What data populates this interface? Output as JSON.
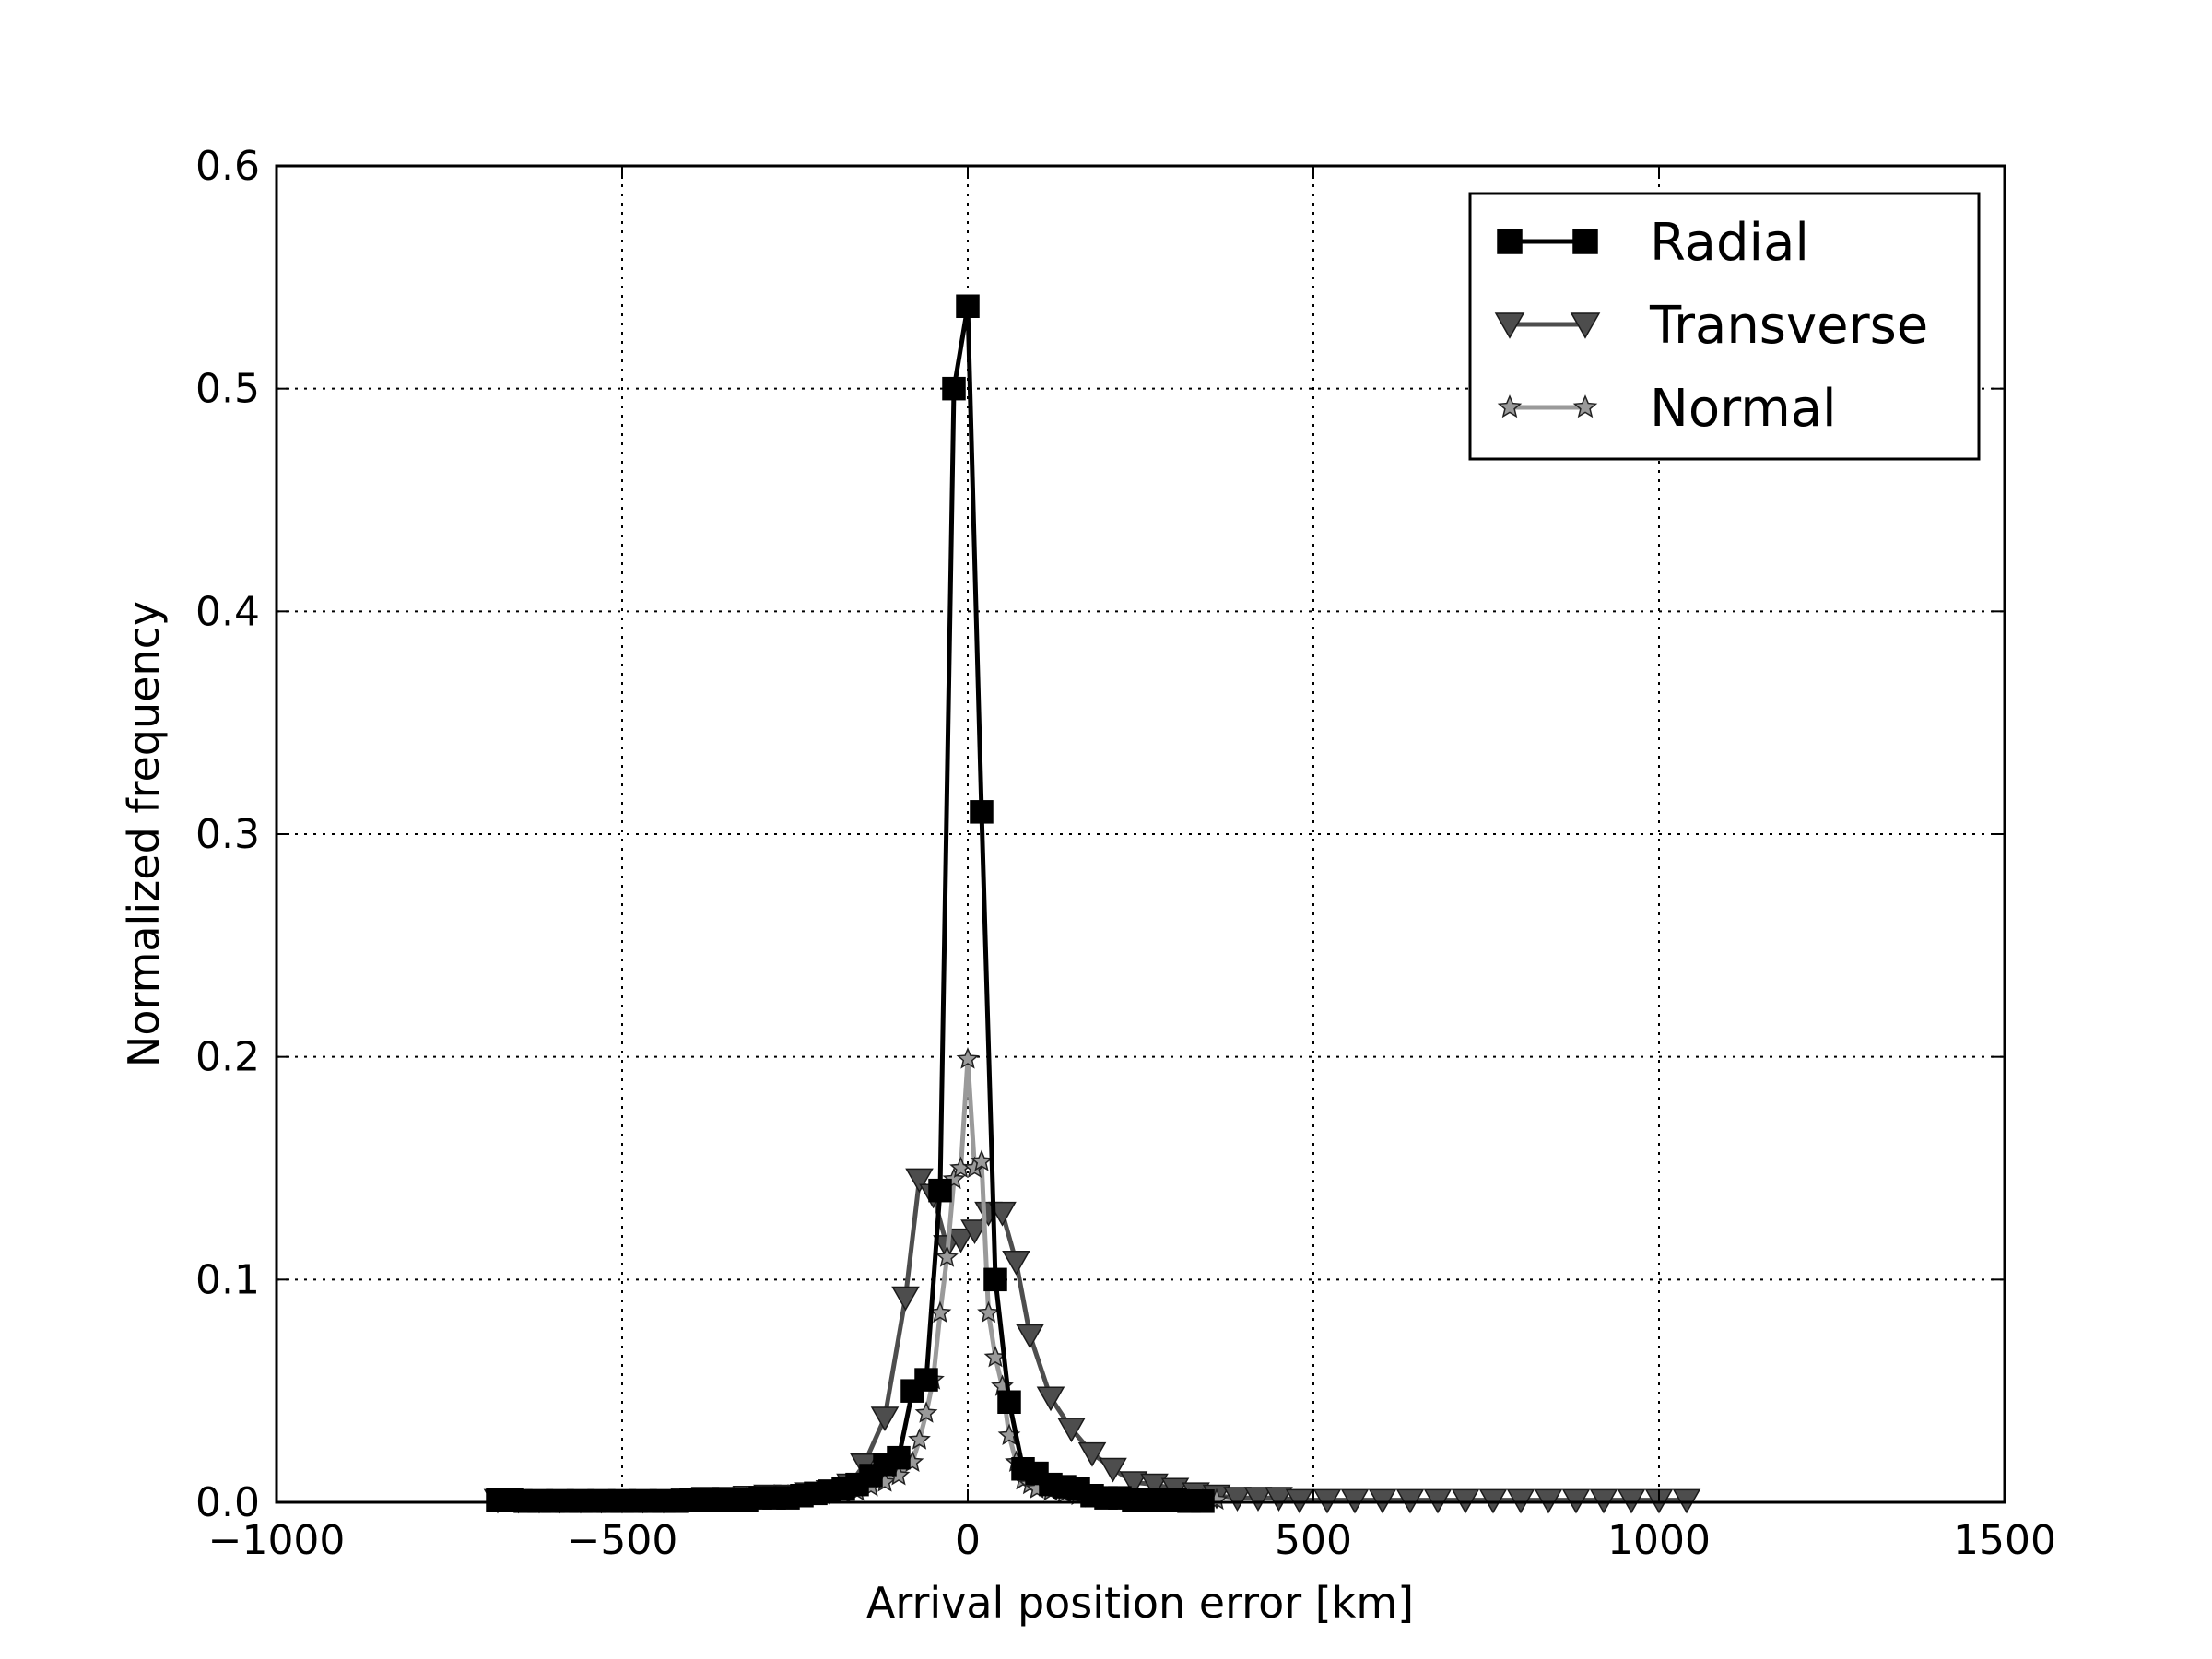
{
  "chart_data": {
    "type": "line",
    "title": "",
    "xlabel": "Arrival position error [km]",
    "ylabel": "Normalized frequency",
    "xlim": [
      -1000,
      1500
    ],
    "ylim": [
      0,
      0.6
    ],
    "xticks": [
      -1000,
      -500,
      0,
      500,
      1000,
      1500
    ],
    "yticks": [
      0.0,
      0.1,
      0.2,
      0.3,
      0.4,
      0.5,
      0.6
    ],
    "xtick_labels": [
      "−1000",
      "−500",
      "0",
      "500",
      "1000",
      "1500"
    ],
    "ytick_labels": [
      "0.0",
      "0.1",
      "0.2",
      "0.3",
      "0.4",
      "0.5",
      "0.6"
    ],
    "grid": true,
    "legend_position": "top-right",
    "series": [
      {
        "name": "Radial",
        "color": "#000000",
        "marker": "square",
        "x": [
          -680,
          -660,
          -640,
          -620,
          -600,
          -580,
          -560,
          -540,
          -520,
          -500,
          -480,
          -460,
          -440,
          -420,
          -400,
          -380,
          -360,
          -340,
          -320,
          -300,
          -280,
          -260,
          -240,
          -220,
          -200,
          -180,
          -160,
          -140,
          -120,
          -100,
          -80,
          -60,
          -40,
          -20,
          0,
          20,
          40,
          60,
          80,
          100,
          120,
          140,
          160,
          180,
          200,
          220,
          240,
          260,
          280,
          300,
          320,
          340
        ],
        "y": [
          0.001,
          0.001,
          0.0005,
          0.0005,
          0.0005,
          0.0005,
          0.0005,
          0.0005,
          0.0005,
          0.0005,
          0.0005,
          0.0005,
          0.0005,
          0.0005,
          0.001,
          0.001,
          0.001,
          0.001,
          0.001,
          0.002,
          0.002,
          0.002,
          0.003,
          0.004,
          0.005,
          0.006,
          0.008,
          0.012,
          0.017,
          0.02,
          0.05,
          0.055,
          0.14,
          0.5,
          0.537,
          0.31,
          0.1,
          0.045,
          0.015,
          0.013,
          0.008,
          0.007,
          0.006,
          0.003,
          0.002,
          0.002,
          0.001,
          0.001,
          0.001,
          0.001,
          0.0005,
          0.0005
        ]
      },
      {
        "name": "Transverse",
        "color": "#4d4d4d",
        "marker": "triangle-down",
        "x": [
          -680,
          -650,
          -620,
          -590,
          -560,
          -530,
          -500,
          -470,
          -440,
          -410,
          -380,
          -350,
          -320,
          -290,
          -260,
          -230,
          -200,
          -170,
          -150,
          -120,
          -90,
          -70,
          -50,
          -30,
          -10,
          10,
          30,
          50,
          70,
          90,
          120,
          150,
          180,
          210,
          240,
          270,
          300,
          330,
          360,
          390,
          420,
          450,
          480,
          520,
          560,
          600,
          640,
          680,
          720,
          760,
          800,
          840,
          880,
          920,
          960,
          1000,
          1040
        ],
        "y": [
          0.001,
          0.001,
          0.001,
          0.001,
          0.001,
          0.001,
          0.001,
          0.001,
          0.001,
          0.0015,
          0.002,
          0.002,
          0.0025,
          0.003,
          0.003,
          0.004,
          0.005,
          0.008,
          0.017,
          0.038,
          0.092,
          0.145,
          0.138,
          0.115,
          0.118,
          0.122,
          0.13,
          0.13,
          0.108,
          0.075,
          0.047,
          0.033,
          0.022,
          0.015,
          0.009,
          0.008,
          0.006,
          0.004,
          0.003,
          0.002,
          0.002,
          0.002,
          0.001,
          0.001,
          0.001,
          0.001,
          0.001,
          0.001,
          0.001,
          0.001,
          0.001,
          0.001,
          0.001,
          0.001,
          0.001,
          0.001,
          0.001
        ]
      },
      {
        "name": "Normal",
        "color": "#9a9a9a",
        "marker": "star",
        "x": [
          -420,
          -400,
          -380,
          -360,
          -340,
          -320,
          -300,
          -280,
          -260,
          -240,
          -220,
          -200,
          -180,
          -160,
          -140,
          -120,
          -100,
          -80,
          -70,
          -60,
          -50,
          -40,
          -30,
          -20,
          -10,
          0,
          10,
          20,
          30,
          40,
          50,
          60,
          70,
          80,
          90,
          100,
          120,
          140,
          160,
          180,
          200,
          220,
          240,
          260,
          280,
          300,
          320,
          340,
          360
        ],
        "y": [
          0.001,
          0.001,
          0.001,
          0.001,
          0.002,
          0.002,
          0.002,
          0.003,
          0.003,
          0.003,
          0.003,
          0.004,
          0.004,
          0.005,
          0.007,
          0.009,
          0.012,
          0.018,
          0.028,
          0.04,
          0.055,
          0.085,
          0.11,
          0.145,
          0.15,
          0.199,
          0.15,
          0.153,
          0.085,
          0.065,
          0.052,
          0.03,
          0.018,
          0.01,
          0.008,
          0.006,
          0.005,
          0.004,
          0.003,
          0.002,
          0.002,
          0.002,
          0.001,
          0.001,
          0.001,
          0.001,
          0.001,
          0.001,
          0.001
        ]
      }
    ]
  }
}
